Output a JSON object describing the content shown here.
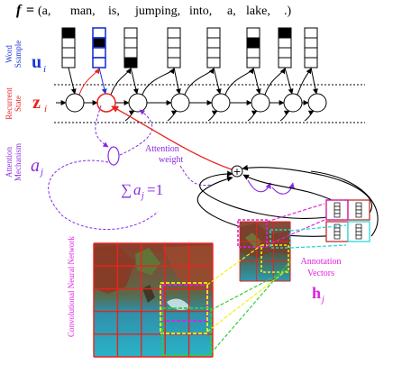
{
  "title": {
    "prefix": "f",
    "equals": "=",
    "words": [
      "(a,",
      "man,",
      "is,",
      "jumping,",
      "into,",
      "a,",
      "lake,",
      ".)"
    ]
  },
  "labels": {
    "word_sample": [
      "Word",
      "Ssample"
    ],
    "recurrent_state": [
      "Recurrent",
      "State"
    ],
    "attention_mechanism": [
      "Attention",
      "Mechanism"
    ],
    "cnn": "Convolutional Neural Network",
    "annotation_vectors": [
      "Annotation",
      "Vectors"
    ],
    "attention_weight": [
      "Attention",
      "weight"
    ]
  },
  "symbols": {
    "u": "u",
    "u_sub": "i",
    "z": "z",
    "z_sub": "i",
    "a": "a",
    "a_sub": "j",
    "h": "h",
    "h_sub": "j",
    "sum_sigma": "∑",
    "sum_a": "a",
    "sum_sub": "j",
    "sum_rhs": "=1",
    "plus": "+"
  },
  "colors": {
    "red": "#e8231d",
    "blue": "#1d35d8",
    "purple": "#8a2be2",
    "magenta": "#e020e0",
    "yellow": "#f2f20a",
    "green": "#2fd12f",
    "cyan": "#1ad6d6",
    "dark_red": "#b82020"
  }
}
